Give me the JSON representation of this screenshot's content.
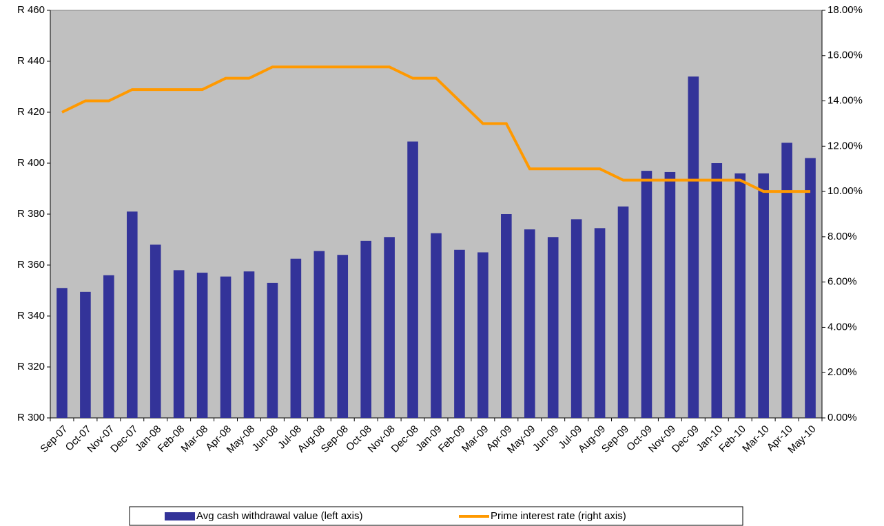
{
  "chart_data": {
    "type": "bar_line",
    "categories": [
      "Sep-07",
      "Oct-07",
      "Nov-07",
      "Dec-07",
      "Jan-08",
      "Feb-08",
      "Mar-08",
      "Apr-08",
      "May-08",
      "Jun-08",
      "Jul-08",
      "Aug-08",
      "Sep-08",
      "Oct-08",
      "Nov-08",
      "Dec-08",
      "Jan-09",
      "Feb-09",
      "Mar-09",
      "Apr-09",
      "May-09",
      "Jun-09",
      "Jul-09",
      "Aug-09",
      "Sep-09",
      "Oct-09",
      "Nov-09",
      "Dec-09",
      "Jan-10",
      "Feb-10",
      "Mar-10",
      "Apr-10",
      "May-10"
    ],
    "series": [
      {
        "name": "Avg cash withdrawal value (left axis)",
        "type": "bar",
        "color": "#333399",
        "values": [
          351,
          349.5,
          356,
          381,
          368,
          358,
          357,
          355.5,
          357.5,
          353,
          362.5,
          365.5,
          364,
          369.5,
          371,
          408.5,
          372.5,
          366,
          365,
          380,
          374,
          371,
          378,
          374.5,
          383,
          397,
          396.5,
          434,
          400,
          396,
          396,
          408,
          402
        ]
      },
      {
        "name": "Prime interest rate (right axis)",
        "type": "line",
        "axis": "y2",
        "color": "#ff9900",
        "values": [
          13.5,
          14,
          14,
          14.5,
          14.5,
          14.5,
          14.5,
          15,
          15,
          15.5,
          15.5,
          15.5,
          15.5,
          15.5,
          15.5,
          15,
          15,
          14,
          13,
          13,
          11,
          11,
          11,
          11,
          10.5,
          10.5,
          10.5,
          10.5,
          10.5,
          10.5,
          10,
          10,
          10
        ]
      }
    ],
    "ylim": [
      300,
      460
    ],
    "yticks": [
      {
        "value": 300,
        "label": "R 300"
      },
      {
        "value": 320,
        "label": "R 320"
      },
      {
        "value": 340,
        "label": "R 340"
      },
      {
        "value": 360,
        "label": "R 360"
      },
      {
        "value": 380,
        "label": "R 380"
      },
      {
        "value": 400,
        "label": "R 400"
      },
      {
        "value": 420,
        "label": "R 420"
      },
      {
        "value": 440,
        "label": "R 440"
      },
      {
        "value": 460,
        "label": "R 460"
      }
    ],
    "y2lim": [
      0,
      18
    ],
    "y2ticks": [
      {
        "value": 0,
        "label": "0.00%"
      },
      {
        "value": 2,
        "label": "2.00%"
      },
      {
        "value": 4,
        "label": "4.00%"
      },
      {
        "value": 6,
        "label": "6.00%"
      },
      {
        "value": 8,
        "label": "8.00%"
      },
      {
        "value": 10,
        "label": "10.00%"
      },
      {
        "value": 12,
        "label": "12.00%"
      },
      {
        "value": 14,
        "label": "14.00%"
      },
      {
        "value": 16,
        "label": "16.00%"
      },
      {
        "value": 18,
        "label": "18.00%"
      }
    ],
    "legend": "bottom"
  }
}
